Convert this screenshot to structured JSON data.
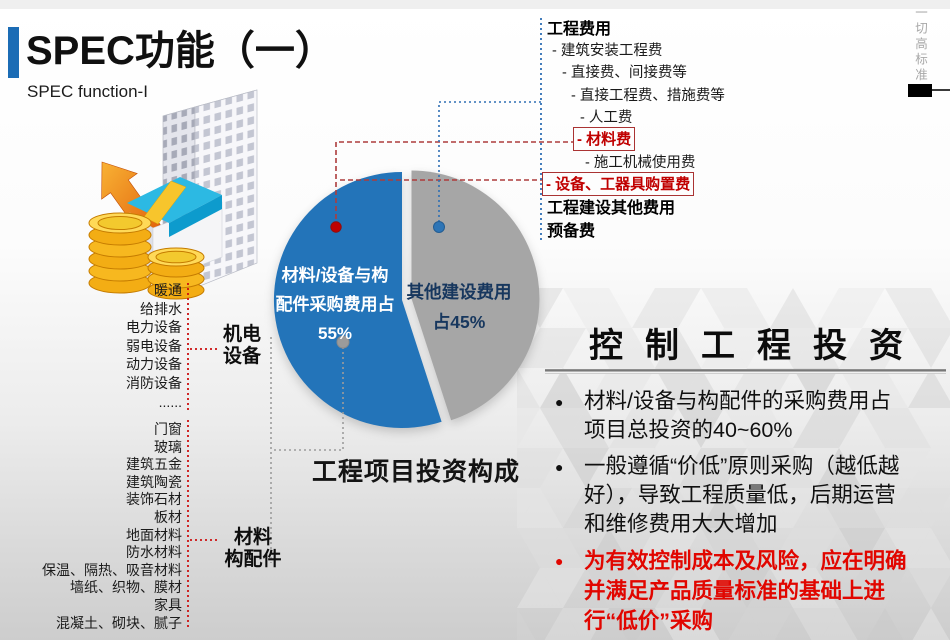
{
  "slide": {
    "title": "SPEC功能（一）",
    "subtitle": "SPEC function-I",
    "side_note": "一切高标准"
  },
  "cost_list": {
    "items": [
      {
        "label": "工程费用",
        "level": 0,
        "emphasis": "bold"
      },
      {
        "label": "- 建筑安装工程费",
        "level": 1,
        "emphasis": null
      },
      {
        "label": "- 直接费、间接费等",
        "level": 2,
        "emphasis": null
      },
      {
        "label": "- 直接工程费、措施费等",
        "level": 3,
        "emphasis": null
      },
      {
        "label": "- 人工费",
        "level": 4,
        "emphasis": null
      },
      {
        "label": "- 材料费",
        "level": 4,
        "emphasis": "boxed-red"
      },
      {
        "label": "- 施工机械使用费",
        "level": 5,
        "emphasis": null
      },
      {
        "label": "- 设备、工器具购置费",
        "level": 0,
        "emphasis": "boxed-red"
      },
      {
        "label": "工程建设其他费用",
        "level": 0,
        "emphasis": "bold"
      },
      {
        "label": "预备费",
        "level": 0,
        "emphasis": "bold"
      }
    ]
  },
  "left_groups": [
    {
      "label_lines": [
        "机电",
        "设备"
      ],
      "items": [
        "暖通",
        "给排水",
        "电力设备",
        "弱电设备",
        "动力设备",
        "消防设备",
        "......"
      ]
    },
    {
      "label_lines": [
        "材料",
        "构配件"
      ],
      "items": [
        "门窗",
        "玻璃",
        "建筑五金",
        "建筑陶瓷",
        "装饰石材",
        "板材",
        "地面材料",
        "防水材料",
        "保温、隔热、吸音材料",
        "墙纸、织物、膜材",
        "家具",
        "混凝土、砌块、腻子"
      ]
    }
  ],
  "chart_data": {
    "type": "pie",
    "title": "工程项目投资构成",
    "legend_position": "none",
    "slices": [
      {
        "name": "材料/设备与构配件采购费用",
        "value": 55,
        "color": "#2374b9",
        "label_lines": [
          "材料/设备与构",
          "配件采购费用占",
          "55%"
        ]
      },
      {
        "name": "其他建设费用",
        "value": 45,
        "color": "#a6a6a6",
        "label_lines": [
          "其他建设费用",
          "占45%",
          ""
        ]
      }
    ]
  },
  "right_panel": {
    "heading": "控制工程投资",
    "bullets": [
      {
        "text": "材料/设备与构配件的采购费用占项目总投资的40~60%",
        "color": "black"
      },
      {
        "text": "一般遵循“价低”原则采购（越低越好），导致工程质量低，后期运营和维修费用大大增加",
        "color": "black"
      },
      {
        "text": "为有效控制成本及风险，应在明确并满足产品质量标准的基础上进行“低价”采购",
        "color": "red"
      }
    ]
  },
  "colors": {
    "accent_blue": "#2374b9",
    "pie_gray": "#a6a6a6",
    "box_red": "#c00000",
    "bullet_red": "#e10600",
    "navy_text": "#17375e"
  }
}
